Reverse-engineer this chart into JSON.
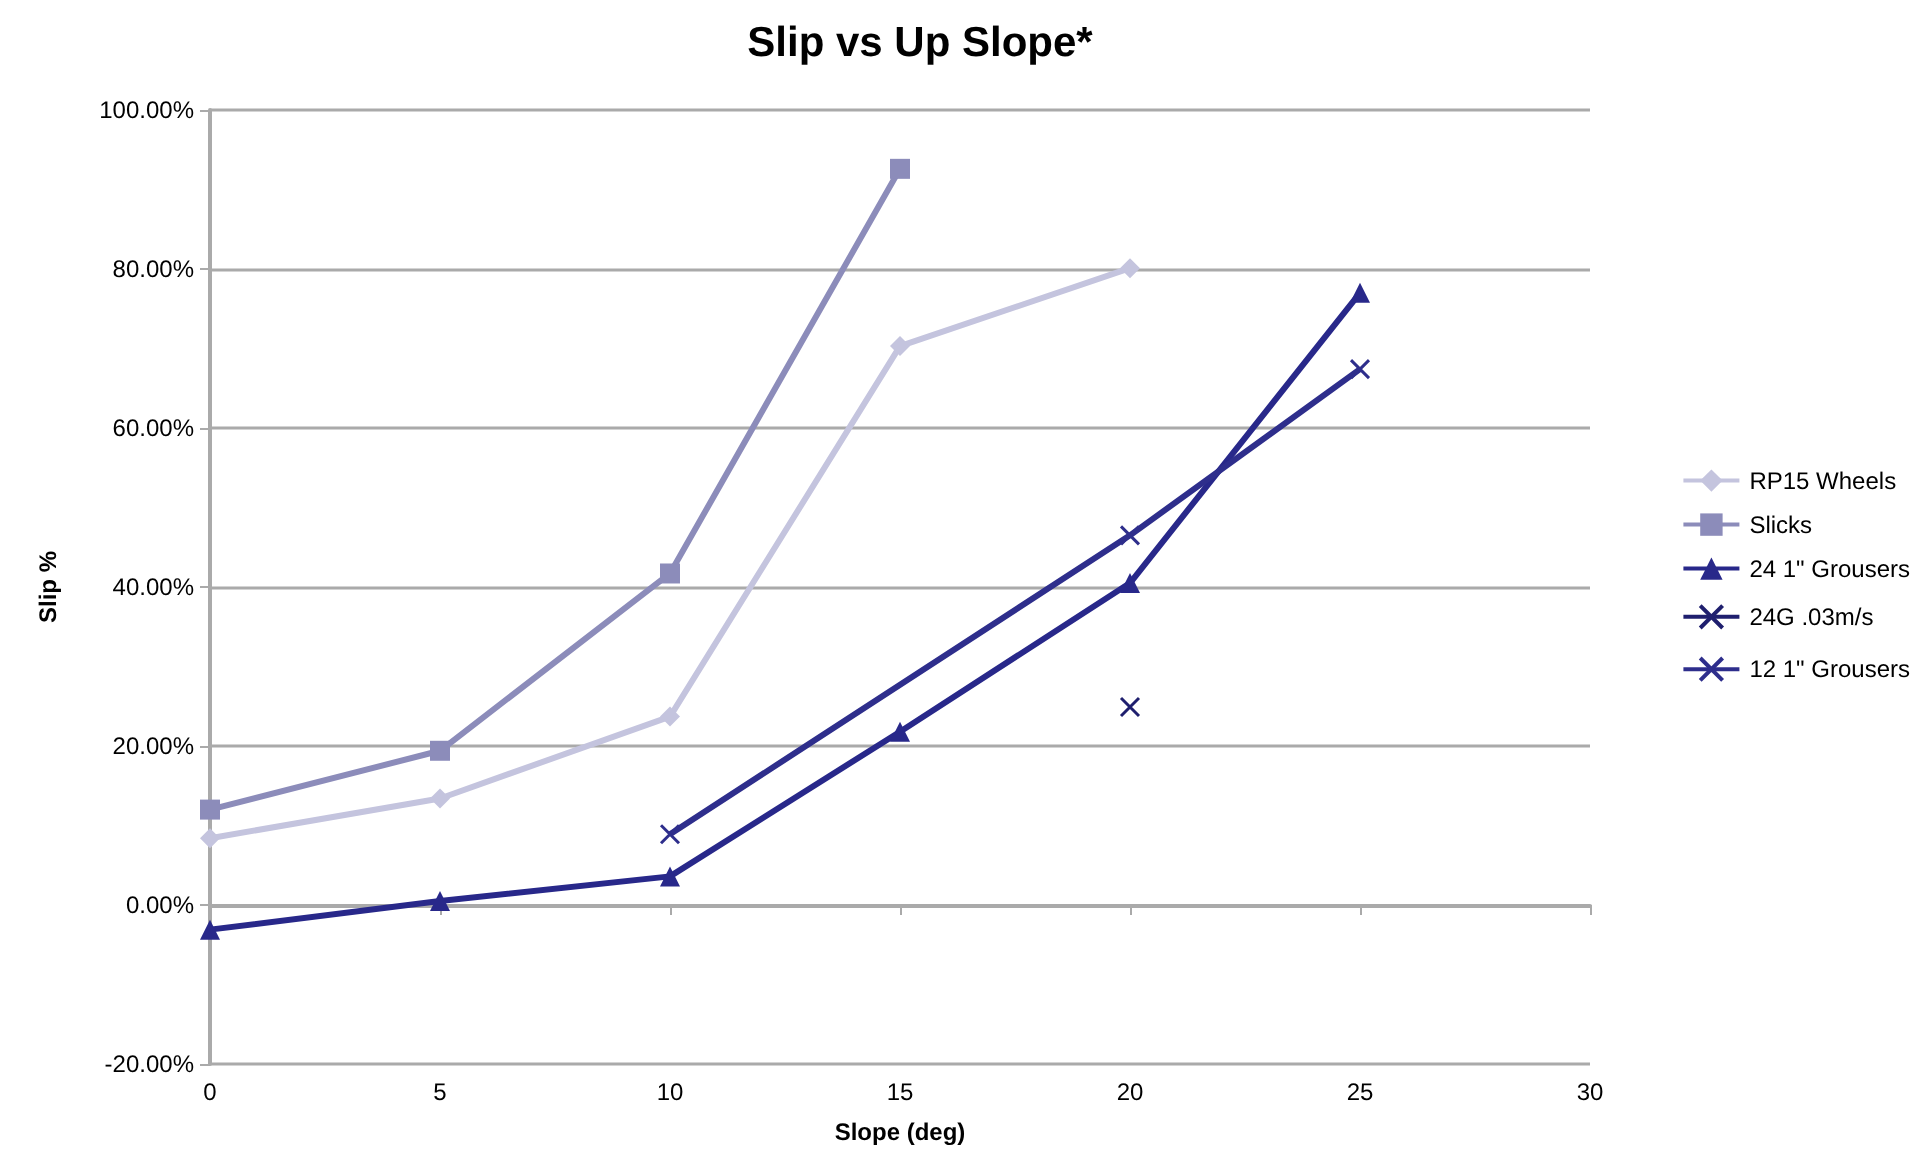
{
  "chart_data": {
    "type": "line",
    "title": "Slip vs Up Slope*",
    "xlabel": "Slope (deg)",
    "ylabel": "Slip %",
    "series": [
      {
        "name": "RP15 Wheels",
        "color": "#c4c4de",
        "marker": "diamond",
        "x": [
          0,
          5,
          10,
          15,
          20
        ],
        "values": [
          8.4,
          13.4,
          23.7,
          70.3,
          80.1
        ]
      },
      {
        "name": "Slicks",
        "color": "#8c8cba",
        "marker": "square",
        "x": [
          0,
          5,
          10,
          15
        ],
        "values": [
          12,
          19.4,
          41.7,
          92.6
        ]
      },
      {
        "name": "24 1\" Grousers",
        "color": "#28288a",
        "marker": "triangle",
        "x": [
          0,
          5,
          10,
          15,
          20,
          25
        ],
        "values": [
          -3.1,
          0.5,
          3.6,
          21.8,
          40.5,
          77
        ]
      },
      {
        "name": "24G .03m/s",
        "color": "#1f1f6e",
        "marker": "cross",
        "x": [
          20
        ],
        "values": [
          24.9
        ]
      },
      {
        "name": "12 1\" Grousers",
        "color": "#2e2e8c",
        "marker": "cross",
        "x": [
          10,
          20,
          25
        ],
        "values": [
          8.9,
          46.5,
          67.4
        ]
      }
    ],
    "xlim": [
      0,
      30
    ],
    "xticks": [
      0,
      5,
      10,
      15,
      20,
      25,
      30
    ],
    "ylim": [
      -20,
      100
    ],
    "yticks": [
      {
        "value": -20,
        "label": "-20.00%"
      },
      {
        "value": 0,
        "label": "0.00%"
      },
      {
        "value": 20,
        "label": "20.00%"
      },
      {
        "value": 40,
        "label": "40.00%"
      },
      {
        "value": 60,
        "label": "60.00%"
      },
      {
        "value": 80,
        "label": "80.00%"
      },
      {
        "value": 100,
        "label": "100.00%"
      }
    ],
    "grid": "y",
    "legend": "right"
  }
}
